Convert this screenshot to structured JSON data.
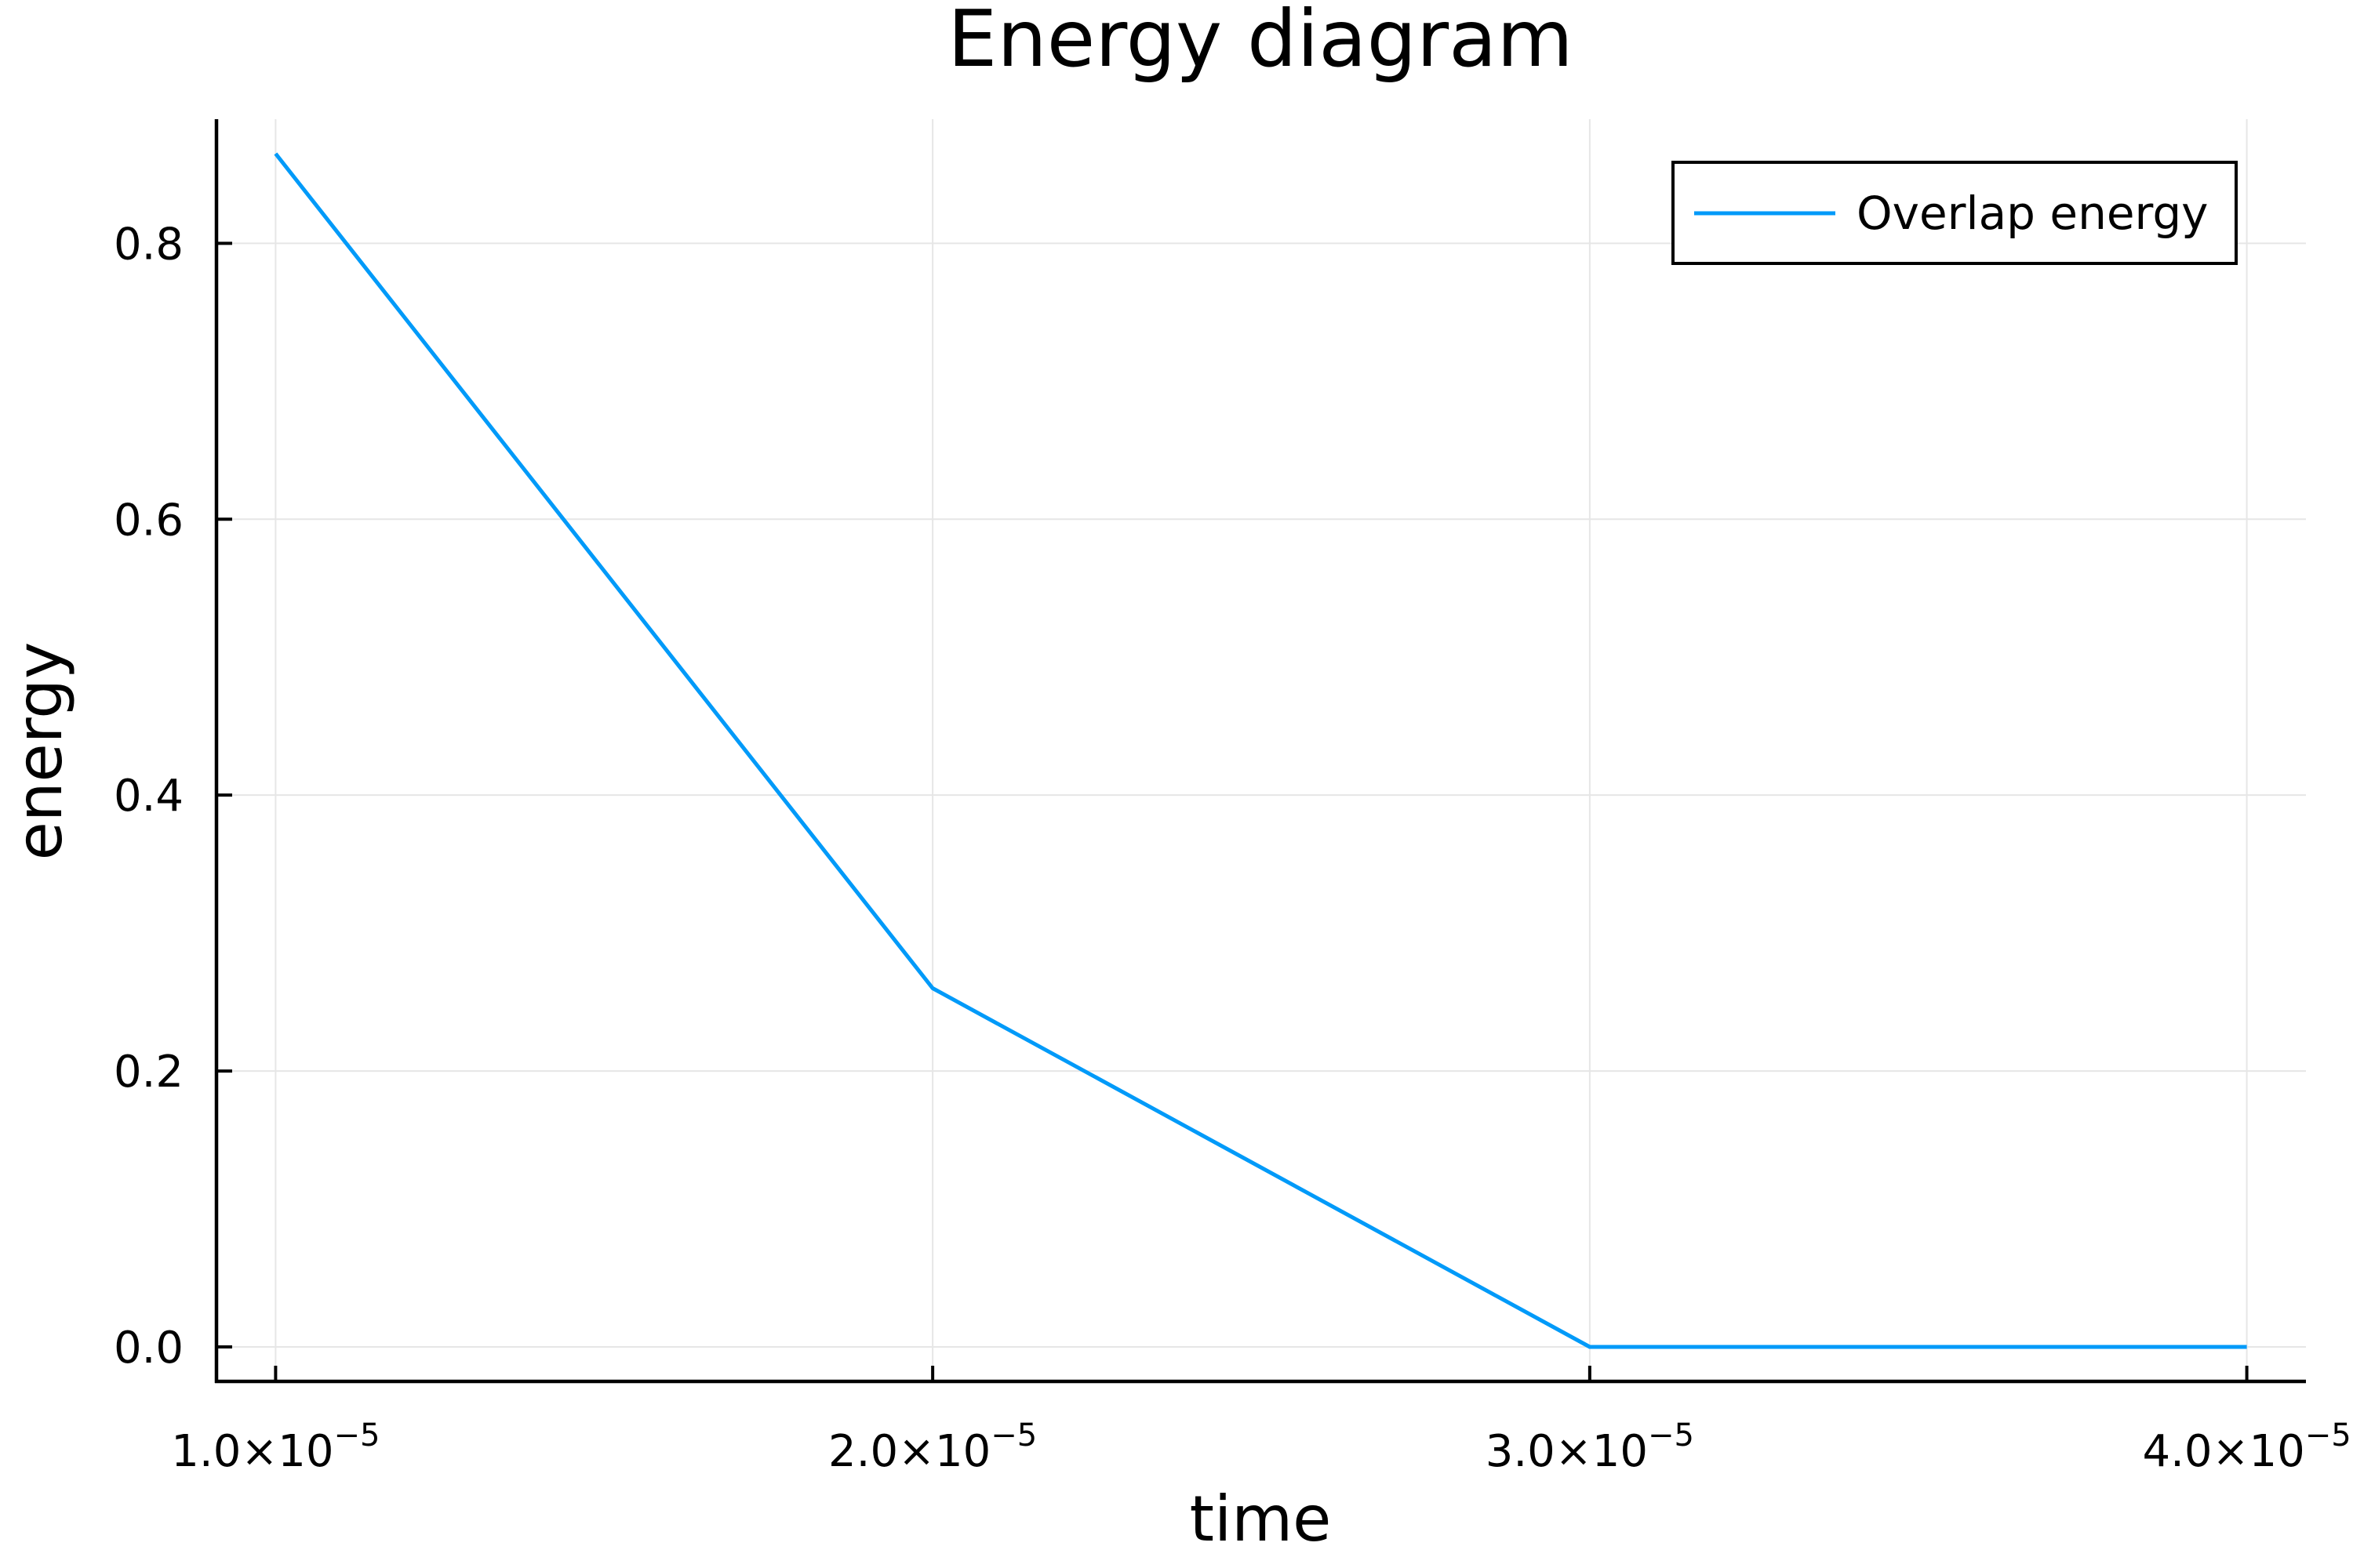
{
  "chart_data": {
    "type": "line",
    "title": "Energy diagram",
    "xlabel": "time",
    "ylabel": "energy",
    "xlim": [
      9.1e-06,
      4.09e-05
    ],
    "ylim": [
      -0.025,
      0.89
    ],
    "x_ticks": [
      {
        "value": 1e-05,
        "mantissa": "1.0",
        "exponent": "−5"
      },
      {
        "value": 2e-05,
        "mantissa": "2.0",
        "exponent": "−5"
      },
      {
        "value": 3e-05,
        "mantissa": "3.0",
        "exponent": "−5"
      },
      {
        "value": 4e-05,
        "mantissa": "4.0",
        "exponent": "−5"
      }
    ],
    "y_ticks": [
      {
        "value": 0.0,
        "label": "0.0"
      },
      {
        "value": 0.2,
        "label": "0.2"
      },
      {
        "value": 0.4,
        "label": "0.4"
      },
      {
        "value": 0.6,
        "label": "0.6"
      },
      {
        "value": 0.8,
        "label": "0.8"
      }
    ],
    "grid": true,
    "legend_position": "top-right",
    "series": [
      {
        "name": "Overlap energy",
        "color": "#009af9",
        "x": [
          1e-05,
          2e-05,
          3e-05,
          4e-05
        ],
        "y": [
          0.865,
          0.26,
          0.0,
          0.0
        ]
      }
    ]
  }
}
